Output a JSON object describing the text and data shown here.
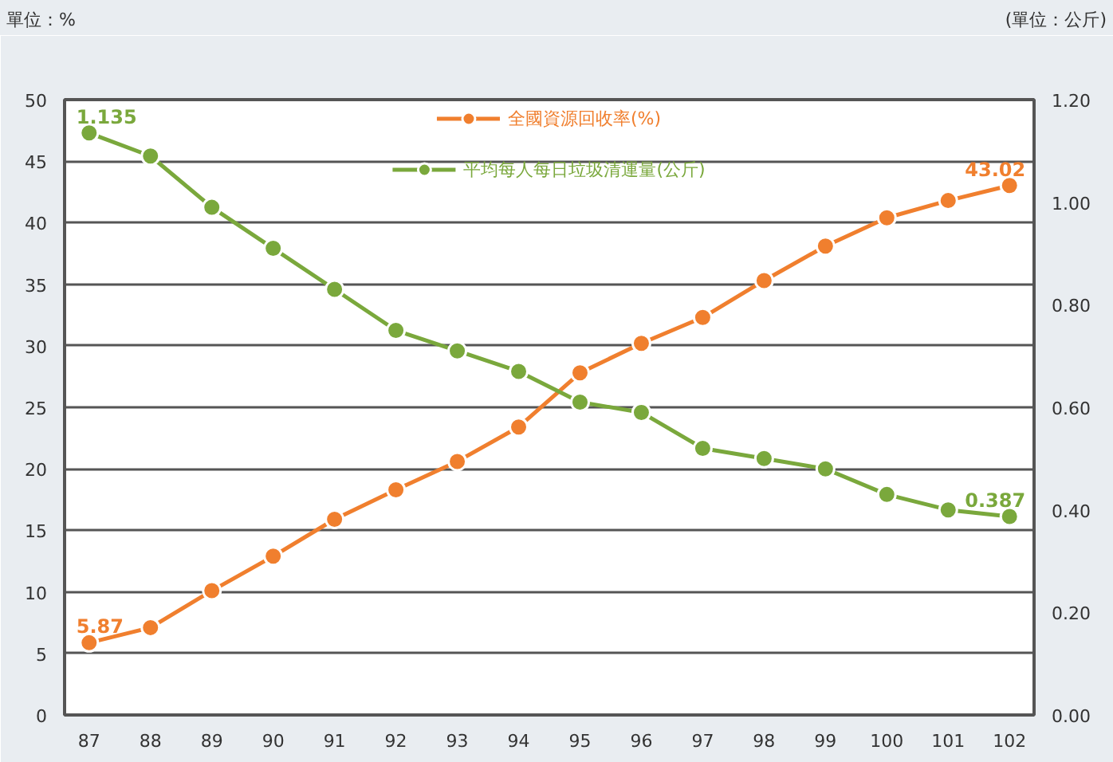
{
  "chart_data": {
    "type": "line",
    "ylabel": "單位：%",
    "y2label": "(單位：公斤)",
    "categories": [
      "87",
      "88",
      "89",
      "90",
      "91",
      "92",
      "93",
      "94",
      "95",
      "96",
      "97",
      "98",
      "99",
      "100",
      "101",
      "102"
    ],
    "series": [
      {
        "name": "全國資源回收率(%)",
        "color": "#f07f2e",
        "values": [
          5.87,
          7.1,
          10.1,
          12.9,
          15.9,
          18.3,
          20.6,
          23.4,
          27.8,
          30.2,
          32.3,
          35.3,
          38.1,
          40.4,
          41.8,
          43.02
        ],
        "value_labels": [
          "5.87",
          null,
          null,
          null,
          null,
          null,
          null,
          null,
          null,
          null,
          null,
          null,
          null,
          null,
          null,
          "43.02"
        ]
      },
      {
        "name": "平均每人每日垃圾清運量(公斤)",
        "color": "#7aa83c",
        "axis": "y2",
        "values": [
          1.135,
          1.09,
          0.99,
          0.91,
          0.83,
          0.75,
          0.71,
          0.67,
          0.61,
          0.59,
          0.52,
          0.5,
          0.48,
          0.43,
          0.4,
          0.387
        ],
        "value_labels": [
          "1.135",
          null,
          null,
          null,
          null,
          null,
          null,
          null,
          null,
          null,
          null,
          null,
          null,
          null,
          null,
          "0.387"
        ]
      }
    ],
    "ylim": [
      0,
      50
    ],
    "yticks": [
      0,
      5,
      10,
      15,
      20,
      25,
      30,
      35,
      40,
      45,
      50
    ],
    "y2lim": [
      0,
      1.2
    ],
    "y2ticks": [
      {
        "value": 0,
        "label": "0.00"
      },
      {
        "value": 0.2,
        "label": "0.20"
      },
      {
        "value": 0.4,
        "label": "0.40"
      },
      {
        "value": 0.6,
        "label": "0.60"
      },
      {
        "value": 0.8,
        "label": "0.80"
      },
      {
        "value": 1.0,
        "label": "1.00"
      },
      {
        "value": 1.2,
        "label": "1.20"
      }
    ],
    "grid": "y",
    "legend": "top",
    "marker": "circle",
    "line_style": "solid"
  }
}
